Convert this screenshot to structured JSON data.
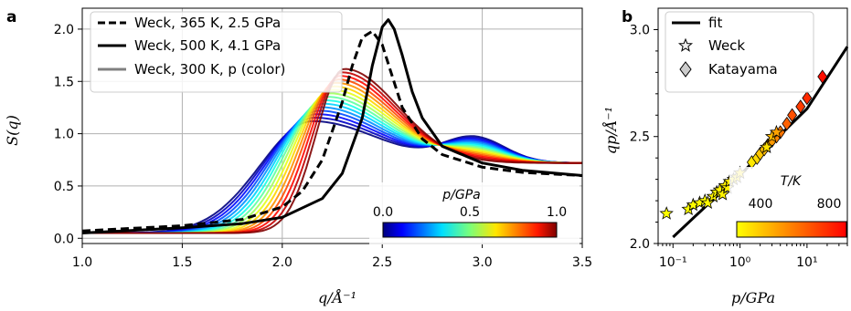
{
  "chart_data": [
    {
      "panel": "a",
      "type": "line",
      "xlabel": "q/Å⁻¹",
      "ylabel": "S(q)",
      "xlim": [
        1.0,
        3.5
      ],
      "ylim": [
        -0.05,
        2.2
      ],
      "xticks": [
        "1.0",
        "1.5",
        "2.0",
        "2.5",
        "3.0",
        "3.5"
      ],
      "yticks": [
        "0.0",
        "0.5",
        "1.0",
        "1.5",
        "2.0"
      ],
      "grid": true,
      "legend_position": "top-left",
      "series": [
        {
          "name": "Weck, 365 K, 2.5 GPa",
          "style": "dashed",
          "color": "#000000",
          "x": [
            1.0,
            1.5,
            1.8,
            2.0,
            2.1,
            2.2,
            2.3,
            2.35,
            2.4,
            2.45,
            2.5,
            2.55,
            2.6,
            2.7,
            2.8,
            3.0,
            3.2,
            3.5
          ],
          "y": [
            0.07,
            0.12,
            0.18,
            0.3,
            0.45,
            0.75,
            1.3,
            1.65,
            1.92,
            1.98,
            1.85,
            1.55,
            1.25,
            0.95,
            0.8,
            0.68,
            0.63,
            0.6
          ]
        },
        {
          "name": "Weck, 500 K, 4.1 GPa",
          "style": "solid",
          "color": "#000000",
          "x": [
            1.0,
            1.5,
            1.8,
            2.0,
            2.2,
            2.3,
            2.4,
            2.45,
            2.5,
            2.53,
            2.56,
            2.6,
            2.65,
            2.7,
            2.8,
            3.0,
            3.2,
            3.5
          ],
          "y": [
            0.05,
            0.1,
            0.14,
            0.2,
            0.38,
            0.62,
            1.15,
            1.65,
            2.02,
            2.09,
            2.0,
            1.75,
            1.4,
            1.15,
            0.88,
            0.72,
            0.65,
            0.6
          ]
        },
        {
          "name": "Weck, 300 K, p (color)",
          "style": "solid",
          "color": "#808080"
        }
      ],
      "colorbar": {
        "label": "p/GPa",
        "ticks": [
          "0.0",
          "0.5",
          "1.0"
        ],
        "range": [
          0.0,
          1.0
        ],
        "colormap": "jet"
      }
    },
    {
      "panel": "b",
      "type": "scatter",
      "xlabel": "p/GPa",
      "ylabel": "qp/Å⁻¹",
      "xscale": "log",
      "xlim": [
        0.06,
        40
      ],
      "ylim": [
        2.0,
        3.1
      ],
      "xticks": [
        "10⁻¹",
        "10⁰",
        "10¹"
      ],
      "yticks": [
        "2.0",
        "2.5",
        "3.0"
      ],
      "legend_position": "top-left",
      "series": [
        {
          "name": "fit",
          "style": "solid line",
          "color": "#000000",
          "x": [
            0.1,
            0.3,
            1.0,
            3.0,
            10.0,
            40.0
          ],
          "y": [
            2.03,
            2.17,
            2.32,
            2.47,
            2.63,
            2.92
          ]
        },
        {
          "name": "Weck",
          "marker": "star",
          "x": [
            0.08,
            0.17,
            0.2,
            0.25,
            0.3,
            0.33,
            0.4,
            0.45,
            0.5,
            0.55,
            0.6,
            0.65,
            0.7,
            0.8,
            0.9,
            1.0,
            2.5,
            3.0,
            3.5
          ],
          "y": [
            2.14,
            2.16,
            2.18,
            2.19,
            2.2,
            2.19,
            2.22,
            2.24,
            2.25,
            2.23,
            2.27,
            2.26,
            2.29,
            2.3,
            2.31,
            2.33,
            2.45,
            2.5,
            2.52
          ],
          "t": [
            300,
            300,
            305,
            310,
            300,
            315,
            320,
            310,
            330,
            325,
            335,
            330,
            340,
            345,
            350,
            360,
            365,
            450,
            500
          ]
        },
        {
          "name": "Katayama",
          "marker": "diamond",
          "x": [
            1.5,
            1.8,
            2.0,
            2.3,
            2.6,
            3.0,
            3.5,
            4.0,
            5.0,
            6.0,
            8.0,
            10.0,
            17.0
          ],
          "y": [
            2.38,
            2.4,
            2.42,
            2.44,
            2.46,
            2.48,
            2.5,
            2.52,
            2.56,
            2.6,
            2.64,
            2.68,
            2.78
          ],
          "t": [
            350,
            380,
            420,
            450,
            480,
            520,
            560,
            600,
            640,
            680,
            720,
            760,
            820
          ]
        }
      ],
      "colorbar": {
        "label": "T/K",
        "ticks": [
          "400",
          "800"
        ],
        "range": [
          300,
          850
        ],
        "colormap": "autumn_r"
      }
    }
  ]
}
